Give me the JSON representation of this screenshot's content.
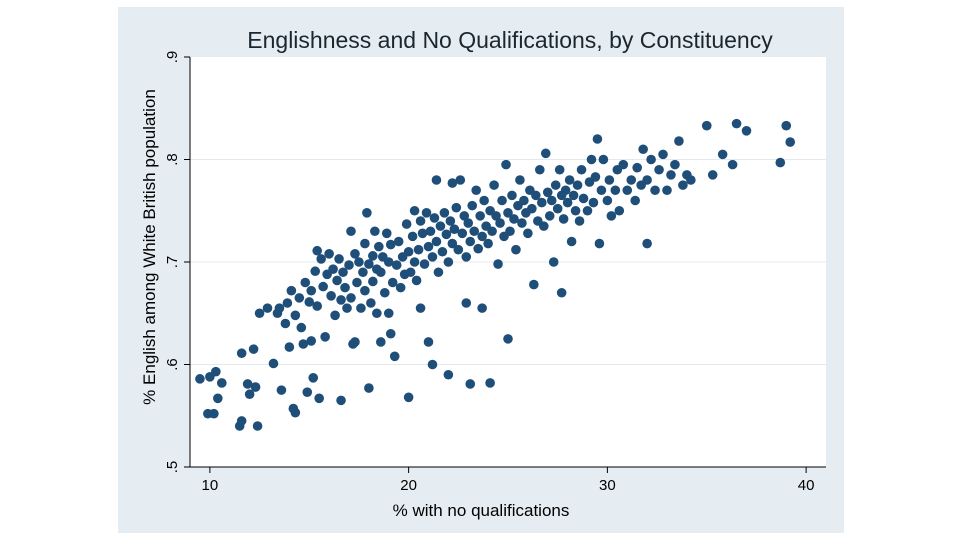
{
  "chart_data": {
    "type": "scatter",
    "title": "Englishness and No Qualifications, by Constituency",
    "xlabel": "% with no qualifications",
    "ylabel": "% English among White British population",
    "xlim": [
      9,
      41
    ],
    "ylim": [
      0.5,
      0.9
    ],
    "xticks": [
      10,
      20,
      30,
      40
    ],
    "xtick_labels": [
      "10",
      "20",
      "30",
      "40"
    ],
    "yticks": [
      0.5,
      0.6,
      0.7,
      0.8,
      0.9
    ],
    "ytick_labels": [
      ".5",
      ".6",
      ".7",
      ".8",
      ".9"
    ],
    "grid": "horizontal",
    "colors": {
      "marker": "#1f4e79",
      "plot_bg": "#ffffff",
      "figure_bg": "#e6edf2",
      "grid": "#e4e9ee"
    },
    "points": [
      [
        9.5,
        0.586
      ],
      [
        9.9,
        0.552
      ],
      [
        10.0,
        0.588
      ],
      [
        10.2,
        0.552
      ],
      [
        10.3,
        0.593
      ],
      [
        10.4,
        0.567
      ],
      [
        10.6,
        0.582
      ],
      [
        11.5,
        0.54
      ],
      [
        11.6,
        0.545
      ],
      [
        11.6,
        0.611
      ],
      [
        11.9,
        0.581
      ],
      [
        12.0,
        0.571
      ],
      [
        12.2,
        0.615
      ],
      [
        12.3,
        0.578
      ],
      [
        12.4,
        0.54
      ],
      [
        12.5,
        0.65
      ],
      [
        12.9,
        0.655
      ],
      [
        13.2,
        0.601
      ],
      [
        13.4,
        0.65
      ],
      [
        13.6,
        0.575
      ],
      [
        13.5,
        0.655
      ],
      [
        13.8,
        0.64
      ],
      [
        13.9,
        0.66
      ],
      [
        14.0,
        0.617
      ],
      [
        14.1,
        0.672
      ],
      [
        14.2,
        0.557
      ],
      [
        14.3,
        0.553
      ],
      [
        14.3,
        0.648
      ],
      [
        14.5,
        0.665
      ],
      [
        14.6,
        0.636
      ],
      [
        14.7,
        0.62
      ],
      [
        14.8,
        0.68
      ],
      [
        14.9,
        0.573
      ],
      [
        15.0,
        0.661
      ],
      [
        15.1,
        0.672
      ],
      [
        15.1,
        0.623
      ],
      [
        15.2,
        0.587
      ],
      [
        15.3,
        0.691
      ],
      [
        15.4,
        0.711
      ],
      [
        15.4,
        0.657
      ],
      [
        15.5,
        0.567
      ],
      [
        15.6,
        0.703
      ],
      [
        15.7,
        0.676
      ],
      [
        15.8,
        0.627
      ],
      [
        15.9,
        0.688
      ],
      [
        16.0,
        0.708
      ],
      [
        16.1,
        0.667
      ],
      [
        16.2,
        0.693
      ],
      [
        16.3,
        0.648
      ],
      [
        16.4,
        0.682
      ],
      [
        16.5,
        0.703
      ],
      [
        16.6,
        0.663
      ],
      [
        16.6,
        0.565
      ],
      [
        16.7,
        0.69
      ],
      [
        16.8,
        0.675
      ],
      [
        16.9,
        0.655
      ],
      [
        17.0,
        0.697
      ],
      [
        17.1,
        0.73
      ],
      [
        17.1,
        0.665
      ],
      [
        17.2,
        0.62
      ],
      [
        17.3,
        0.708
      ],
      [
        17.3,
        0.622
      ],
      [
        17.4,
        0.68
      ],
      [
        17.5,
        0.7
      ],
      [
        17.6,
        0.655
      ],
      [
        17.7,
        0.69
      ],
      [
        17.8,
        0.718
      ],
      [
        17.8,
        0.672
      ],
      [
        17.9,
        0.748
      ],
      [
        18.0,
        0.698
      ],
      [
        18.0,
        0.577
      ],
      [
        18.1,
        0.66
      ],
      [
        18.2,
        0.706
      ],
      [
        18.2,
        0.681
      ],
      [
        18.3,
        0.73
      ],
      [
        18.4,
        0.693
      ],
      [
        18.4,
        0.65
      ],
      [
        18.5,
        0.715
      ],
      [
        18.6,
        0.69
      ],
      [
        18.6,
        0.622
      ],
      [
        18.7,
        0.705
      ],
      [
        18.8,
        0.67
      ],
      [
        18.9,
        0.728
      ],
      [
        19.0,
        0.7
      ],
      [
        19.0,
        0.65
      ],
      [
        19.1,
        0.717
      ],
      [
        19.1,
        0.63
      ],
      [
        19.2,
        0.68
      ],
      [
        19.3,
        0.608
      ],
      [
        19.4,
        0.697
      ],
      [
        19.5,
        0.72
      ],
      [
        19.6,
        0.675
      ],
      [
        19.7,
        0.705
      ],
      [
        19.8,
        0.688
      ],
      [
        19.9,
        0.737
      ],
      [
        20.0,
        0.71
      ],
      [
        20.0,
        0.568
      ],
      [
        20.1,
        0.69
      ],
      [
        20.2,
        0.725
      ],
      [
        20.3,
        0.7
      ],
      [
        20.3,
        0.75
      ],
      [
        20.4,
        0.682
      ],
      [
        20.5,
        0.712
      ],
      [
        20.6,
        0.74
      ],
      [
        20.6,
        0.655
      ],
      [
        20.7,
        0.728
      ],
      [
        20.8,
        0.698
      ],
      [
        20.9,
        0.748
      ],
      [
        21.0,
        0.715
      ],
      [
        21.0,
        0.622
      ],
      [
        21.1,
        0.73
      ],
      [
        21.2,
        0.705
      ],
      [
        21.2,
        0.6
      ],
      [
        21.3,
        0.743
      ],
      [
        21.4,
        0.72
      ],
      [
        21.4,
        0.78
      ],
      [
        21.5,
        0.69
      ],
      [
        21.6,
        0.735
      ],
      [
        21.7,
        0.71
      ],
      [
        21.8,
        0.748
      ],
      [
        21.9,
        0.727
      ],
      [
        22.0,
        0.7
      ],
      [
        22.0,
        0.59
      ],
      [
        22.1,
        0.74
      ],
      [
        22.2,
        0.718
      ],
      [
        22.2,
        0.777
      ],
      [
        22.3,
        0.732
      ],
      [
        22.4,
        0.753
      ],
      [
        22.5,
        0.712
      ],
      [
        22.6,
        0.78
      ],
      [
        22.7,
        0.728
      ],
      [
        22.8,
        0.745
      ],
      [
        22.9,
        0.705
      ],
      [
        22.9,
        0.66
      ],
      [
        23.0,
        0.738
      ],
      [
        23.1,
        0.72
      ],
      [
        23.1,
        0.581
      ],
      [
        23.2,
        0.755
      ],
      [
        23.3,
        0.73
      ],
      [
        23.4,
        0.77
      ],
      [
        23.5,
        0.713
      ],
      [
        23.6,
        0.745
      ],
      [
        23.7,
        0.725
      ],
      [
        23.7,
        0.655
      ],
      [
        23.8,
        0.76
      ],
      [
        23.9,
        0.735
      ],
      [
        24.0,
        0.718
      ],
      [
        24.1,
        0.75
      ],
      [
        24.1,
        0.582
      ],
      [
        24.2,
        0.73
      ],
      [
        24.3,
        0.775
      ],
      [
        24.4,
        0.745
      ],
      [
        24.5,
        0.698
      ],
      [
        24.6,
        0.738
      ],
      [
        24.7,
        0.76
      ],
      [
        24.8,
        0.725
      ],
      [
        24.9,
        0.795
      ],
      [
        25.0,
        0.748
      ],
      [
        25.0,
        0.625
      ],
      [
        25.1,
        0.73
      ],
      [
        25.2,
        0.765
      ],
      [
        25.3,
        0.742
      ],
      [
        25.4,
        0.712
      ],
      [
        25.5,
        0.755
      ],
      [
        25.6,
        0.78
      ],
      [
        25.7,
        0.738
      ],
      [
        25.8,
        0.76
      ],
      [
        25.9,
        0.748
      ],
      [
        26.0,
        0.728
      ],
      [
        26.1,
        0.77
      ],
      [
        26.2,
        0.752
      ],
      [
        26.3,
        0.678
      ],
      [
        26.4,
        0.765
      ],
      [
        26.5,
        0.74
      ],
      [
        26.6,
        0.79
      ],
      [
        26.7,
        0.758
      ],
      [
        26.8,
        0.735
      ],
      [
        26.9,
        0.806
      ],
      [
        27.0,
        0.768
      ],
      [
        27.1,
        0.745
      ],
      [
        27.2,
        0.76
      ],
      [
        27.3,
        0.7
      ],
      [
        27.4,
        0.775
      ],
      [
        27.5,
        0.752
      ],
      [
        27.6,
        0.79
      ],
      [
        27.7,
        0.765
      ],
      [
        27.7,
        0.67
      ],
      [
        27.8,
        0.742
      ],
      [
        27.9,
        0.77
      ],
      [
        28.0,
        0.758
      ],
      [
        28.1,
        0.78
      ],
      [
        28.2,
        0.72
      ],
      [
        28.3,
        0.765
      ],
      [
        28.4,
        0.75
      ],
      [
        28.5,
        0.775
      ],
      [
        28.6,
        0.74
      ],
      [
        28.7,
        0.79
      ],
      [
        28.8,
        0.762
      ],
      [
        29.0,
        0.75
      ],
      [
        29.1,
        0.778
      ],
      [
        29.2,
        0.8
      ],
      [
        29.3,
        0.758
      ],
      [
        29.4,
        0.783
      ],
      [
        29.5,
        0.82
      ],
      [
        29.6,
        0.718
      ],
      [
        29.7,
        0.77
      ],
      [
        29.8,
        0.8
      ],
      [
        30.0,
        0.76
      ],
      [
        30.1,
        0.78
      ],
      [
        30.2,
        0.745
      ],
      [
        30.4,
        0.77
      ],
      [
        30.5,
        0.79
      ],
      [
        30.6,
        0.75
      ],
      [
        30.8,
        0.795
      ],
      [
        31.0,
        0.77
      ],
      [
        31.2,
        0.78
      ],
      [
        31.4,
        0.76
      ],
      [
        31.5,
        0.792
      ],
      [
        31.7,
        0.775
      ],
      [
        31.8,
        0.81
      ],
      [
        32.0,
        0.718
      ],
      [
        32.0,
        0.78
      ],
      [
        32.2,
        0.8
      ],
      [
        32.4,
        0.77
      ],
      [
        32.6,
        0.79
      ],
      [
        32.8,
        0.805
      ],
      [
        33.0,
        0.77
      ],
      [
        33.2,
        0.785
      ],
      [
        33.4,
        0.795
      ],
      [
        33.6,
        0.818
      ],
      [
        33.8,
        0.775
      ],
      [
        34.0,
        0.785
      ],
      [
        34.2,
        0.78
      ],
      [
        35.0,
        0.833
      ],
      [
        35.3,
        0.785
      ],
      [
        35.8,
        0.805
      ],
      [
        36.3,
        0.795
      ],
      [
        36.5,
        0.835
      ],
      [
        37.0,
        0.828
      ],
      [
        38.7,
        0.797
      ],
      [
        39.0,
        0.833
      ],
      [
        39.2,
        0.817
      ]
    ]
  }
}
